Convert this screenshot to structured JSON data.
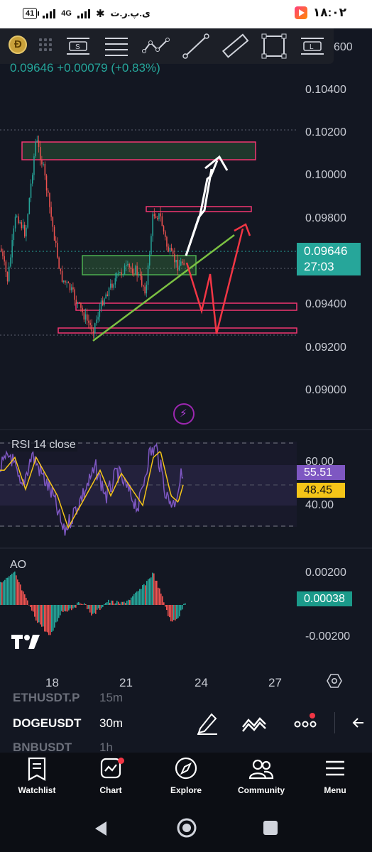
{
  "status_bar": {
    "battery": "41",
    "network": "4G",
    "carrier": "ی.پ.ر.ت",
    "time": "۱۸:۰۲"
  },
  "toolbar": {
    "tools": [
      "brush-s-icon",
      "horizontal-lines-icon",
      "path-icon",
      "trend-line-icon",
      "ruler-icon",
      "rectangle-icon",
      "text-l-icon"
    ]
  },
  "symbol_header": {
    "price_change": "0.09646 +0.00079 (+0.83%)"
  },
  "price_axis": {
    "labels": [
      "0.10400",
      "0.10200",
      "0.10000",
      "0.09800",
      "0.09400",
      "0.09200",
      "0.09000"
    ],
    "partial_top_label": "600",
    "current_price": "0.09646",
    "countdown": "27:03",
    "current_price_color": "#26a69a"
  },
  "rsi": {
    "label": "RSI 14 close",
    "levels": [
      "60.00",
      "40.00"
    ],
    "value": "55.51",
    "ma_value": "48.45",
    "value_color": "#7e57c2",
    "ma_color": "#f5c518"
  },
  "ao": {
    "label": "AO",
    "levels": [
      "0.00200",
      "-0.00200"
    ],
    "value": "0.00038",
    "value_color": "#1b9a8a"
  },
  "time_axis": {
    "labels": [
      "18",
      "21",
      "24",
      "27"
    ]
  },
  "symbol_list": {
    "top": {
      "symbol": "ETHUSDT.P",
      "timeframe": "15m"
    },
    "active": {
      "symbol": "DOGEUSDT",
      "timeframe": "30m"
    },
    "bottom": {
      "symbol": "BNBUSDT",
      "timeframe": "1h"
    }
  },
  "bottom_nav": {
    "watchlist": "Watchlist",
    "chart": "Chart",
    "explore": "Explore",
    "community": "Community",
    "menu": "Menu"
  },
  "colors": {
    "bull": "#26a69a",
    "bear": "#ef5350",
    "zone_red": "#f23671",
    "zone_green": "#4caf50",
    "trend_green": "#7cc142",
    "arrow_red": "#f23645"
  }
}
